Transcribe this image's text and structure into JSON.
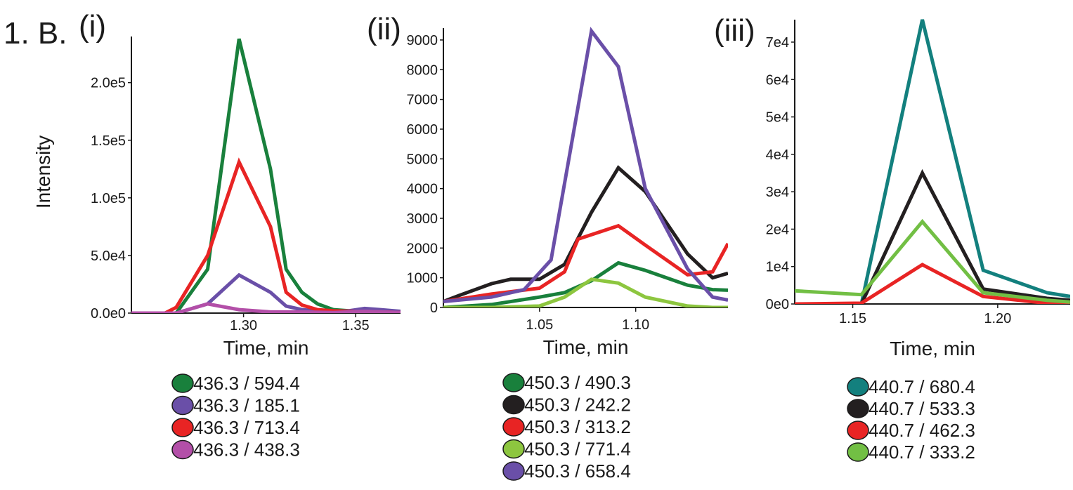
{
  "figure_label": "1. B.",
  "ylabel": "Intensity",
  "chart_data": [
    {
      "type": "line",
      "panel_label": "(i)",
      "xlabel": "Time, min",
      "ylabel": "Intensity",
      "xlim": [
        1.25,
        1.37
      ],
      "ylim": [
        0,
        240000
      ],
      "xticks": [
        1.3,
        1.35
      ],
      "xtick_labels": [
        "1.30",
        "1.35"
      ],
      "yticks": [
        0,
        50000,
        100000,
        150000,
        200000
      ],
      "ytick_labels": [
        "0.0e0",
        "5.0e4",
        "1.0e5",
        "1.5e5",
        "2.0e5"
      ],
      "series": [
        {
          "name": "436.3 / 594.4",
          "color": "#19803c",
          "x": [
            1.25,
            1.265,
            1.27,
            1.284,
            1.298,
            1.312,
            1.319,
            1.326,
            1.333,
            1.34,
            1.347,
            1.354,
            1.361,
            1.37
          ],
          "y": [
            0,
            0,
            0,
            38000,
            238000,
            125000,
            38000,
            18000,
            8000,
            3000,
            2000,
            1500,
            2000,
            1000
          ]
        },
        {
          "name": "436.3 / 185.1",
          "color": "#6a4fa8",
          "x": [
            1.25,
            1.27,
            1.284,
            1.298,
            1.312,
            1.319,
            1.326,
            1.333,
            1.34,
            1.347,
            1.354,
            1.361,
            1.37
          ],
          "y": [
            0,
            0,
            8000,
            33000,
            18000,
            6000,
            3000,
            2000,
            1500,
            2000,
            4000,
            3000,
            1500
          ]
        },
        {
          "name": "436.3 / 713.4",
          "color": "#e82424",
          "x": [
            1.25,
            1.265,
            1.27,
            1.284,
            1.298,
            1.312,
            1.319,
            1.326,
            1.333,
            1.34,
            1.347,
            1.354,
            1.361,
            1.37
          ],
          "y": [
            0,
            0,
            5000,
            50000,
            131000,
            75000,
            18000,
            7000,
            3000,
            2000,
            1500,
            1000,
            1000,
            500
          ]
        },
        {
          "name": "436.3 / 438.3",
          "color": "#b34fa8",
          "x": [
            1.25,
            1.27,
            1.284,
            1.298,
            1.312,
            1.326,
            1.34,
            1.354,
            1.37
          ],
          "y": [
            0,
            0,
            8000,
            3000,
            1000,
            1000,
            500,
            1500,
            500
          ]
        }
      ]
    },
    {
      "type": "line",
      "panel_label": "(ii)",
      "xlabel": "Time, min",
      "ylabel": "",
      "xlim": [
        1.0,
        1.148
      ],
      "ylim": [
        0,
        9400
      ],
      "xticks": [
        1.05,
        1.1
      ],
      "xtick_labels": [
        "1.05",
        "1.10"
      ],
      "yticks": [
        0,
        1000,
        2000,
        3000,
        4000,
        5000,
        6000,
        7000,
        8000,
        9000
      ],
      "ytick_labels": [
        "0",
        "1000",
        "2000",
        "3000",
        "4000",
        "5000",
        "6000",
        "7000",
        "8000",
        "9000"
      ],
      "series": [
        {
          "name": "450.3 / 490.3",
          "color": "#19803c",
          "x": [
            1.0,
            1.025,
            1.05,
            1.063,
            1.077,
            1.091,
            1.105,
            1.127,
            1.14,
            1.148
          ],
          "y": [
            0,
            100,
            350,
            500,
            900,
            1500,
            1250,
            750,
            600,
            580
          ]
        },
        {
          "name": "450.3 / 242.2",
          "color": "#231f20",
          "x": [
            1.0,
            1.008,
            1.025,
            1.035,
            1.05,
            1.063,
            1.077,
            1.091,
            1.105,
            1.127,
            1.14,
            1.148
          ],
          "y": [
            200,
            400,
            800,
            950,
            950,
            1450,
            3200,
            4700,
            3900,
            1800,
            1000,
            1150
          ]
        },
        {
          "name": "450.3 / 313.2",
          "color": "#e82424",
          "x": [
            1.0,
            1.025,
            1.05,
            1.063,
            1.07,
            1.091,
            1.105,
            1.127,
            1.14,
            1.148
          ],
          "y": [
            200,
            450,
            650,
            1200,
            2300,
            2750,
            2100,
            1100,
            1200,
            2150
          ]
        },
        {
          "name": "450.3 / 771.4",
          "color": "#8dc63f",
          "x": [
            1.0,
            1.025,
            1.05,
            1.063,
            1.077,
            1.091,
            1.105,
            1.127,
            1.14,
            1.148
          ],
          "y": [
            0,
            0,
            50,
            350,
            950,
            820,
            350,
            50,
            0,
            0
          ]
        },
        {
          "name": "450.3 / 658.4",
          "color": "#6a4fa8",
          "x": [
            1.0,
            1.025,
            1.042,
            1.056,
            1.077,
            1.091,
            1.105,
            1.127,
            1.14,
            1.148
          ],
          "y": [
            200,
            350,
            600,
            1600,
            9300,
            8100,
            4000,
            1300,
            350,
            250
          ]
        }
      ]
    },
    {
      "type": "line",
      "panel_label": "(iii)",
      "xlabel": "Time, min",
      "ylabel": "",
      "xlim": [
        1.13,
        1.225
      ],
      "ylim": [
        0,
        76000
      ],
      "xticks": [
        1.15,
        1.2
      ],
      "xtick_labels": [
        "1.15",
        "1.20"
      ],
      "yticks": [
        0,
        10000,
        20000,
        30000,
        40000,
        50000,
        60000,
        70000
      ],
      "ytick_labels": [
        "0e0",
        "1e4",
        "2e4",
        "3e4",
        "4e4",
        "5e4",
        "6e4",
        "7e4"
      ],
      "series": [
        {
          "name": "440.7 / 680.4",
          "color": "#13807e",
          "x": [
            1.13,
            1.153,
            1.174,
            1.195,
            1.217,
            1.225
          ],
          "y": [
            0,
            0,
            76000,
            9000,
            3000,
            2000
          ]
        },
        {
          "name": "440.7 / 533.3",
          "color": "#231f20",
          "x": [
            1.13,
            1.153,
            1.174,
            1.195,
            1.217,
            1.225
          ],
          "y": [
            0,
            0,
            35000,
            4000,
            1500,
            1000
          ]
        },
        {
          "name": "440.7 / 462.3",
          "color": "#e82424",
          "x": [
            1.13,
            1.153,
            1.174,
            1.195,
            1.217,
            1.225
          ],
          "y": [
            0,
            200,
            10500,
            2000,
            200,
            200
          ]
        },
        {
          "name": "440.7 / 333.2",
          "color": "#72bf44",
          "x": [
            1.13,
            1.153,
            1.174,
            1.195,
            1.217,
            1.225
          ],
          "y": [
            3500,
            2500,
            22000,
            3000,
            1000,
            500
          ]
        }
      ]
    }
  ]
}
